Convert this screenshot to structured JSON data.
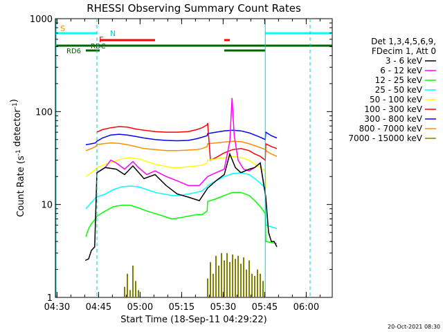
{
  "chart_data": {
    "type": "line",
    "title": "RHESSI Observing Summary Count Rates",
    "xlabel": "Start Time (18-Sep-11 04:29:22)",
    "ylabel": "Count Rate (s⁻¹ detector⁻¹)",
    "yscale": "log",
    "ylim": [
      1,
      1000
    ],
    "xlim_minutes": [
      0,
      100
    ],
    "x_ticks": [
      {
        "t": 0.6,
        "label": "04:30"
      },
      {
        "t": 15.6,
        "label": "04:45"
      },
      {
        "t": 30.6,
        "label": "05:00"
      },
      {
        "t": 45.6,
        "label": "05:15"
      },
      {
        "t": 60.6,
        "label": "05:30"
      },
      {
        "t": 75.6,
        "label": "05:45"
      },
      {
        "t": 90.6,
        "label": "06:00"
      }
    ],
    "y_ticks": [
      {
        "v": 1,
        "label": "1"
      },
      {
        "v": 10,
        "label": "10"
      },
      {
        "v": 100,
        "label": "100"
      },
      {
        "v": 1000,
        "label": "1000"
      }
    ],
    "legend_header": [
      "Det 1,3,4,5,6,9,",
      "FDecim 1, Att 0"
    ],
    "legend_placement": "right",
    "series": [
      {
        "name": "3 - 6 keV",
        "color": "#000000",
        "points": [
          [
            10.8,
            2.5
          ],
          [
            12,
            2.6
          ],
          [
            13,
            3.2
          ],
          [
            14.2,
            3.5
          ],
          [
            15,
            22
          ],
          [
            18,
            25
          ],
          [
            22,
            24
          ],
          [
            25,
            21
          ],
          [
            28,
            26
          ],
          [
            32,
            19
          ],
          [
            36,
            21
          ],
          [
            40,
            16
          ],
          [
            44,
            13
          ],
          [
            48,
            12
          ],
          [
            52,
            11
          ],
          [
            55,
            15
          ],
          [
            58,
            18
          ],
          [
            61,
            21
          ],
          [
            63,
            35
          ],
          [
            65,
            25
          ],
          [
            67,
            22
          ],
          [
            70,
            24
          ],
          [
            72,
            25
          ],
          [
            74,
            28
          ],
          [
            76,
            12
          ],
          [
            77,
            5
          ],
          [
            78,
            4
          ],
          [
            79,
            4
          ],
          [
            80,
            3.5
          ]
        ]
      },
      {
        "name": "6 - 12 keV",
        "color": "#ff00ff",
        "points": [
          [
            15,
            22
          ],
          [
            18,
            25
          ],
          [
            20,
            30
          ],
          [
            22,
            28
          ],
          [
            25,
            24
          ],
          [
            28,
            29
          ],
          [
            30,
            25
          ],
          [
            33,
            21
          ],
          [
            36,
            23
          ],
          [
            40,
            20
          ],
          [
            44,
            18
          ],
          [
            48,
            16
          ],
          [
            52,
            16
          ],
          [
            55,
            20
          ],
          [
            58,
            22
          ],
          [
            61,
            24
          ],
          [
            63,
            48
          ],
          [
            63.8,
            140
          ],
          [
            64.6,
            55
          ],
          [
            66,
            30
          ],
          [
            68,
            24
          ],
          [
            70,
            23
          ],
          [
            72,
            25
          ],
          [
            74,
            28
          ],
          [
            76,
            12
          ]
        ]
      },
      {
        "name": "12 - 25 keV",
        "color": "#00ff00",
        "points": [
          [
            11,
            4.5
          ],
          [
            12,
            5.5
          ],
          [
            13,
            6.2
          ],
          [
            14.5,
            7
          ],
          [
            15,
            7.5
          ],
          [
            18,
            8.5
          ],
          [
            21,
            9.5
          ],
          [
            24,
            9.8
          ],
          [
            27,
            9.8
          ],
          [
            30,
            9.2
          ],
          [
            33,
            8.5
          ],
          [
            36,
            8
          ],
          [
            39,
            7.5
          ],
          [
            42,
            7
          ],
          [
            45,
            7.2
          ],
          [
            48,
            7.5
          ],
          [
            51,
            7.8
          ],
          [
            53,
            7.8
          ],
          [
            54.8,
            8.5
          ],
          [
            55,
            10.8
          ],
          [
            58,
            11.5
          ],
          [
            61,
            12.5
          ],
          [
            64,
            13.5
          ],
          [
            67,
            13.5
          ],
          [
            70,
            12.5
          ],
          [
            72,
            11
          ],
          [
            74,
            9.5
          ],
          [
            75.8,
            8
          ],
          [
            76,
            4
          ],
          [
            80,
            3.8
          ]
        ]
      },
      {
        "name": "25 - 50 keV",
        "color": "#00ffff",
        "points": [
          [
            11,
            9
          ],
          [
            13,
            10.5
          ],
          [
            14.5,
            11.8
          ],
          [
            15,
            12
          ],
          [
            18,
            13
          ],
          [
            21,
            14.5
          ],
          [
            24,
            15.5
          ],
          [
            27,
            15.8
          ],
          [
            30,
            15.5
          ],
          [
            33,
            14.5
          ],
          [
            36,
            13.5
          ],
          [
            39,
            13
          ],
          [
            42,
            12.5
          ],
          [
            45,
            12.5
          ],
          [
            48,
            13
          ],
          [
            51,
            13.5
          ],
          [
            53,
            14
          ],
          [
            54.8,
            15.5
          ],
          [
            55,
            16
          ],
          [
            58,
            18
          ],
          [
            61,
            20
          ],
          [
            64,
            21.5
          ],
          [
            67,
            22
          ],
          [
            70,
            21
          ],
          [
            72,
            19
          ],
          [
            74,
            17
          ],
          [
            75.8,
            15
          ],
          [
            76,
            6
          ],
          [
            80,
            5.5
          ]
        ]
      },
      {
        "name": "50 - 100 keV",
        "color": "#ffff00",
        "points": [
          [
            11,
            20
          ],
          [
            13,
            22
          ],
          [
            14.5,
            24
          ],
          [
            15,
            25
          ],
          [
            18,
            27
          ],
          [
            21,
            29
          ],
          [
            24,
            31
          ],
          [
            27,
            32
          ],
          [
            30,
            31
          ],
          [
            33,
            29
          ],
          [
            36,
            27
          ],
          [
            39,
            26
          ],
          [
            42,
            25
          ],
          [
            45,
            25
          ],
          [
            48,
            25.5
          ],
          [
            51,
            26
          ],
          [
            53,
            26.5
          ],
          [
            54.8,
            28
          ],
          [
            55,
            30
          ],
          [
            58,
            31
          ],
          [
            61,
            32
          ],
          [
            64,
            33
          ],
          [
            67,
            32
          ],
          [
            70,
            30
          ],
          [
            72,
            27
          ],
          [
            74,
            25
          ],
          [
            75.8,
            23
          ],
          [
            76,
            15
          ]
        ]
      },
      {
        "name": "100 - 300 keV",
        "color": "#ff0000",
        "points": [
          [
            15,
            60
          ],
          [
            17,
            64
          ],
          [
            20,
            67
          ],
          [
            23,
            69
          ],
          [
            26,
            68
          ],
          [
            29,
            65
          ],
          [
            32,
            63
          ],
          [
            36,
            61
          ],
          [
            40,
            60
          ],
          [
            44,
            60
          ],
          [
            48,
            61
          ],
          [
            51,
            64
          ],
          [
            53,
            67
          ],
          [
            54.8,
            72
          ],
          [
            55,
            75
          ],
          [
            56,
            30
          ],
          [
            58,
            32
          ],
          [
            61,
            36
          ],
          [
            64,
            39
          ],
          [
            67,
            40
          ],
          [
            70,
            38
          ],
          [
            72,
            35
          ],
          [
            74,
            33
          ],
          [
            75.8,
            30
          ],
          [
            76,
            45
          ],
          [
            78,
            42
          ],
          [
            80,
            40
          ]
        ]
      },
      {
        "name": "300 - 800 keV",
        "color": "#0000ff",
        "points": [
          [
            11,
            44
          ],
          [
            13,
            45
          ],
          [
            14.5,
            46
          ],
          [
            15,
            48
          ],
          [
            17,
            52
          ],
          [
            20,
            56
          ],
          [
            23,
            57
          ],
          [
            26,
            56
          ],
          [
            29,
            54
          ],
          [
            32,
            52
          ],
          [
            36,
            50
          ],
          [
            40,
            49
          ],
          [
            44,
            48.5
          ],
          [
            48,
            49
          ],
          [
            51,
            51
          ],
          [
            53,
            53
          ],
          [
            54.8,
            55
          ],
          [
            55,
            58
          ],
          [
            58,
            60
          ],
          [
            61,
            62
          ],
          [
            64,
            63
          ],
          [
            67,
            62
          ],
          [
            70,
            59
          ],
          [
            72,
            56
          ],
          [
            74,
            53
          ],
          [
            75.8,
            50
          ],
          [
            76,
            60
          ],
          [
            78,
            55
          ],
          [
            80,
            52
          ]
        ]
      },
      {
        "name": "800 - 7000 keV",
        "color": "#ff8c00",
        "points": [
          [
            11,
            38
          ],
          [
            13,
            40
          ],
          [
            14.5,
            42
          ],
          [
            15,
            44
          ],
          [
            17,
            45
          ],
          [
            20,
            46
          ],
          [
            23,
            45.5
          ],
          [
            26,
            44
          ],
          [
            29,
            42
          ],
          [
            32,
            40
          ],
          [
            36,
            39
          ],
          [
            40,
            38
          ],
          [
            44,
            38
          ],
          [
            48,
            38.5
          ],
          [
            51,
            39
          ],
          [
            53,
            40
          ],
          [
            54.8,
            42
          ],
          [
            55,
            45
          ],
          [
            58,
            46
          ],
          [
            61,
            47
          ],
          [
            64,
            48
          ],
          [
            67,
            47.5
          ],
          [
            70,
            45
          ],
          [
            72,
            43
          ],
          [
            74,
            41
          ],
          [
            75.8,
            39
          ],
          [
            76,
            38
          ],
          [
            78,
            35
          ],
          [
            80,
            33
          ]
        ]
      },
      {
        "name": "7000 - 15000 keV",
        "color": "#808000",
        "points": [
          [
            25,
            1.3
          ],
          [
            26,
            1.8
          ],
          [
            27,
            1.2
          ],
          [
            28,
            2.2
          ],
          [
            29,
            1.5
          ],
          [
            30,
            1.2
          ],
          [
            55,
            1.6
          ],
          [
            56,
            2.4
          ],
          [
            57,
            1.8
          ],
          [
            58,
            2.8
          ],
          [
            59,
            2.2
          ],
          [
            60,
            3
          ],
          [
            61,
            2.5
          ],
          [
            62,
            3
          ],
          [
            63,
            2.4
          ],
          [
            64,
            2.9
          ],
          [
            65,
            2.6
          ],
          [
            66,
            2.8
          ],
          [
            67,
            2.3
          ],
          [
            68,
            2.7
          ],
          [
            69,
            2
          ],
          [
            70,
            2.5
          ],
          [
            71,
            1.8
          ],
          [
            72,
            1.7
          ],
          [
            73,
            2
          ],
          [
            74,
            1.8
          ],
          [
            75,
            1.5
          ]
        ]
      }
    ],
    "status_bars": [
      {
        "label": "S",
        "color": "#ff8c00",
        "segments": []
      },
      {
        "label": "N",
        "color": "#00ffff",
        "segments": [
          [
            0,
            15
          ],
          [
            75.8,
            100
          ]
        ]
      },
      {
        "label": "F",
        "color": "#ff0000",
        "segments": [
          [
            16,
            36
          ],
          [
            61,
            63
          ]
        ]
      },
      {
        "label": "RD6",
        "color": "#006400",
        "segments": [
          [
            0,
            100
          ]
        ]
      }
    ],
    "state_labels": {
      "saa": "S",
      "night": "N",
      "flare": "F",
      "decim": "RDC",
      "decim6": "RD6"
    },
    "date_stamp": "20-Oct-2021 08:30"
  }
}
